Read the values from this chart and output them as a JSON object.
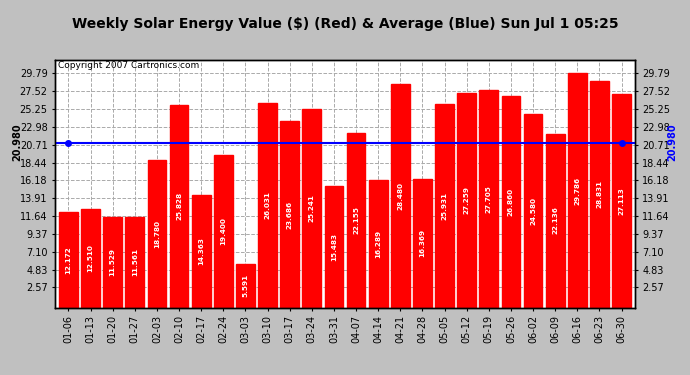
{
  "title": "Weekly Solar Energy Value ($) (Red) & Average (Blue) Sun Jul 1 05:25",
  "copyright": "Copyright 2007 Cartronics.com",
  "bar_color": "#ff0000",
  "average_color": "#0000ff",
  "background_color": "#c0c0c0",
  "plot_bg_color": "#ffffff",
  "average_value": 20.98,
  "average_label": "20.980",
  "categories": [
    "01-06",
    "01-13",
    "01-20",
    "01-27",
    "02-03",
    "02-10",
    "02-17",
    "02-24",
    "03-03",
    "03-10",
    "03-17",
    "03-24",
    "03-31",
    "04-07",
    "04-14",
    "04-21",
    "04-28",
    "05-05",
    "05-12",
    "05-19",
    "05-26",
    "06-02",
    "06-09",
    "06-16",
    "06-23",
    "06-30"
  ],
  "values": [
    12.172,
    12.51,
    11.529,
    11.561,
    18.78,
    25.828,
    14.363,
    19.4,
    5.591,
    26.031,
    23.686,
    25.241,
    15.483,
    22.155,
    16.289,
    28.48,
    16.369,
    25.931,
    27.259,
    27.705,
    26.86,
    24.58,
    22.136,
    29.786,
    28.831,
    27.113
  ],
  "yticks": [
    2.57,
    4.83,
    7.1,
    9.37,
    11.64,
    13.91,
    16.18,
    18.44,
    20.71,
    22.98,
    25.25,
    27.52,
    29.79
  ],
  "ymin": 0,
  "ymax": 31.5,
  "grid_color": "#aaaaaa",
  "title_fontsize": 10,
  "copyright_fontsize": 6.5,
  "tick_fontsize": 7,
  "bar_label_fontsize": 5.2
}
